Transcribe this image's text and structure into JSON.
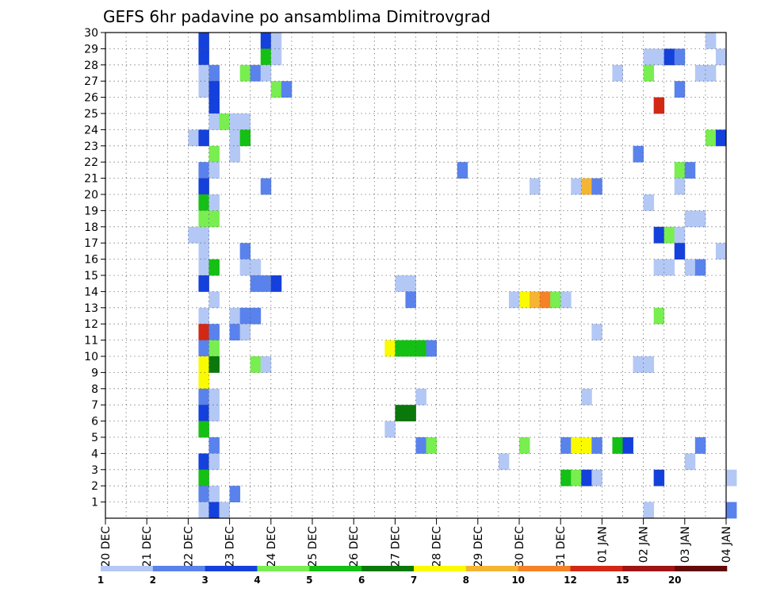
{
  "chart_data": {
    "type": "heatmap",
    "title": "GEFS 6hr padavine po ansamblima Dimitrovgrad",
    "xlabel": "",
    "ylabel": "",
    "x_ticks": [
      "20 DEC",
      "21 DEC",
      "22 DEC",
      "23 DEC",
      "24 DEC",
      "25 DEC",
      "26 DEC",
      "27 DEC",
      "28 DEC",
      "29 DEC",
      "30 DEC",
      "31 DEC",
      "01 JAN",
      "02 JAN",
      "03 JAN",
      "04 JAN"
    ],
    "y_ticks": [
      "1",
      "2",
      "3",
      "4",
      "5",
      "6",
      "7",
      "8",
      "9",
      "10",
      "11",
      "12",
      "13",
      "14",
      "15",
      "16",
      "17",
      "18",
      "19",
      "20",
      "21",
      "22",
      "23",
      "24",
      "25",
      "26",
      "27",
      "28",
      "29",
      "30"
    ],
    "y_range": [
      0,
      30
    ],
    "x_range_steps": [
      0,
      60
    ],
    "steps_per_day": 4,
    "grid": "dotted",
    "legend": {
      "position": "bottom",
      "labels": [
        "1",
        "2",
        "3",
        "4",
        "5",
        "6",
        "7",
        "8",
        "10",
        "12",
        "15",
        "20"
      ],
      "colors": [
        "#b4c8f5",
        "#5a82ec",
        "#1440dc",
        "#78ee50",
        "#14c014",
        "#0a780a",
        "#fafa00",
        "#f5b432",
        "#f58228",
        "#d22814",
        "#a01414",
        "#640a0a"
      ]
    },
    "palette": [
      "#b4c8f5",
      "#5a82ec",
      "#1440dc",
      "#78ee50",
      "#14c014",
      "#0a780a",
      "#fafa00",
      "#f5b432",
      "#f58228",
      "#d22814",
      "#a01414",
      "#640a0a"
    ],
    "cells_note_fields": [
      "step",
      "member",
      "color_index"
    ],
    "cells": [
      [
        9,
        30,
        2
      ],
      [
        15,
        30,
        2
      ],
      [
        16,
        30,
        0
      ],
      [
        58,
        30,
        0
      ],
      [
        9,
        29,
        2
      ],
      [
        15,
        29,
        4
      ],
      [
        16,
        29,
        0
      ],
      [
        52,
        29,
        0
      ],
      [
        53,
        29,
        0
      ],
      [
        54,
        29,
        2
      ],
      [
        55,
        29,
        1
      ],
      [
        59,
        29,
        0
      ],
      [
        9,
        28,
        0
      ],
      [
        10,
        28,
        1
      ],
      [
        13,
        28,
        3
      ],
      [
        14,
        28,
        1
      ],
      [
        15,
        28,
        0
      ],
      [
        49,
        28,
        0
      ],
      [
        52,
        28,
        3
      ],
      [
        57,
        28,
        0
      ],
      [
        58,
        28,
        0
      ],
      [
        9,
        27,
        0
      ],
      [
        10,
        27,
        2
      ],
      [
        16,
        27,
        3
      ],
      [
        17,
        27,
        1
      ],
      [
        55,
        27,
        1
      ],
      [
        10,
        26,
        2
      ],
      [
        53,
        26,
        9
      ],
      [
        10,
        25,
        0
      ],
      [
        11,
        25,
        3
      ],
      [
        12,
        25,
        0
      ],
      [
        13,
        25,
        0
      ],
      [
        8,
        24,
        0
      ],
      [
        9,
        24,
        2
      ],
      [
        12,
        24,
        0
      ],
      [
        13,
        24,
        4
      ],
      [
        58,
        24,
        3
      ],
      [
        59,
        24,
        2
      ],
      [
        10,
        23,
        3
      ],
      [
        12,
        23,
        0
      ],
      [
        51,
        23,
        1
      ],
      [
        9,
        22,
        1
      ],
      [
        10,
        22,
        0
      ],
      [
        34,
        22,
        1
      ],
      [
        55,
        22,
        3
      ],
      [
        56,
        22,
        1
      ],
      [
        9,
        21,
        2
      ],
      [
        15,
        21,
        1
      ],
      [
        41,
        21,
        0
      ],
      [
        45,
        21,
        0
      ],
      [
        46,
        21,
        7
      ],
      [
        47,
        21,
        1
      ],
      [
        55,
        21,
        0
      ],
      [
        9,
        20,
        4
      ],
      [
        10,
        20,
        0
      ],
      [
        52,
        20,
        0
      ],
      [
        9,
        19,
        3
      ],
      [
        10,
        19,
        3
      ],
      [
        56,
        19,
        0
      ],
      [
        57,
        19,
        0
      ],
      [
        8,
        18,
        0
      ],
      [
        9,
        18,
        0
      ],
      [
        53,
        18,
        2
      ],
      [
        54,
        18,
        3
      ],
      [
        55,
        18,
        0
      ],
      [
        9,
        17,
        0
      ],
      [
        13,
        17,
        1
      ],
      [
        55,
        17,
        2
      ],
      [
        59,
        17,
        0
      ],
      [
        9,
        16,
        0
      ],
      [
        10,
        16,
        4
      ],
      [
        13,
        16,
        0
      ],
      [
        14,
        16,
        0
      ],
      [
        53,
        16,
        0
      ],
      [
        54,
        16,
        0
      ],
      [
        56,
        16,
        0
      ],
      [
        57,
        16,
        1
      ],
      [
        9,
        15,
        2
      ],
      [
        14,
        15,
        1
      ],
      [
        15,
        15,
        1
      ],
      [
        16,
        15,
        2
      ],
      [
        28,
        15,
        0
      ],
      [
        29,
        15,
        0
      ],
      [
        10,
        14,
        0
      ],
      [
        29,
        14,
        1
      ],
      [
        39,
        14,
        0
      ],
      [
        40,
        14,
        6
      ],
      [
        41,
        14,
        7
      ],
      [
        42,
        14,
        8
      ],
      [
        43,
        14,
        3
      ],
      [
        44,
        14,
        0
      ],
      [
        9,
        13,
        0
      ],
      [
        12,
        13,
        0
      ],
      [
        13,
        13,
        1
      ],
      [
        14,
        13,
        1
      ],
      [
        53,
        13,
        3
      ],
      [
        9,
        12,
        9
      ],
      [
        10,
        12,
        1
      ],
      [
        12,
        12,
        1
      ],
      [
        13,
        12,
        0
      ],
      [
        47,
        12,
        0
      ],
      [
        9,
        11,
        1
      ],
      [
        10,
        11,
        3
      ],
      [
        27,
        11,
        6
      ],
      [
        28,
        11,
        4
      ],
      [
        29,
        11,
        4
      ],
      [
        30,
        11,
        4
      ],
      [
        31,
        11,
        1
      ],
      [
        9,
        10,
        6
      ],
      [
        10,
        10,
        5
      ],
      [
        14,
        10,
        3
      ],
      [
        15,
        10,
        0
      ],
      [
        51,
        10,
        0
      ],
      [
        52,
        10,
        0
      ],
      [
        9,
        9,
        6
      ],
      [
        9,
        8,
        1
      ],
      [
        10,
        8,
        0
      ],
      [
        30,
        8,
        0
      ],
      [
        46,
        8,
        0
      ],
      [
        9,
        7,
        2
      ],
      [
        10,
        7,
        0
      ],
      [
        28,
        7,
        5
      ],
      [
        29,
        7,
        5
      ],
      [
        9,
        6,
        4
      ],
      [
        27,
        6,
        0
      ],
      [
        10,
        5,
        1
      ],
      [
        30,
        5,
        1
      ],
      [
        31,
        5,
        3
      ],
      [
        40,
        5,
        3
      ],
      [
        44,
        5,
        1
      ],
      [
        45,
        5,
        6
      ],
      [
        46,
        5,
        6
      ],
      [
        47,
        5,
        1
      ],
      [
        49,
        5,
        4
      ],
      [
        50,
        5,
        2
      ],
      [
        57,
        5,
        1
      ],
      [
        9,
        4,
        2
      ],
      [
        10,
        4,
        0
      ],
      [
        38,
        4,
        0
      ],
      [
        56,
        4,
        0
      ],
      [
        9,
        3,
        4
      ],
      [
        44,
        3,
        4
      ],
      [
        45,
        3,
        3
      ],
      [
        46,
        3,
        2
      ],
      [
        47,
        3,
        0
      ],
      [
        53,
        3,
        2
      ],
      [
        60,
        3,
        0
      ],
      [
        9,
        2,
        1
      ],
      [
        10,
        2,
        0
      ],
      [
        12,
        2,
        1
      ],
      [
        9,
        1,
        0
      ],
      [
        10,
        1,
        2
      ],
      [
        11,
        1,
        0
      ],
      [
        52,
        1,
        0
      ],
      [
        60,
        1,
        1
      ]
    ]
  }
}
